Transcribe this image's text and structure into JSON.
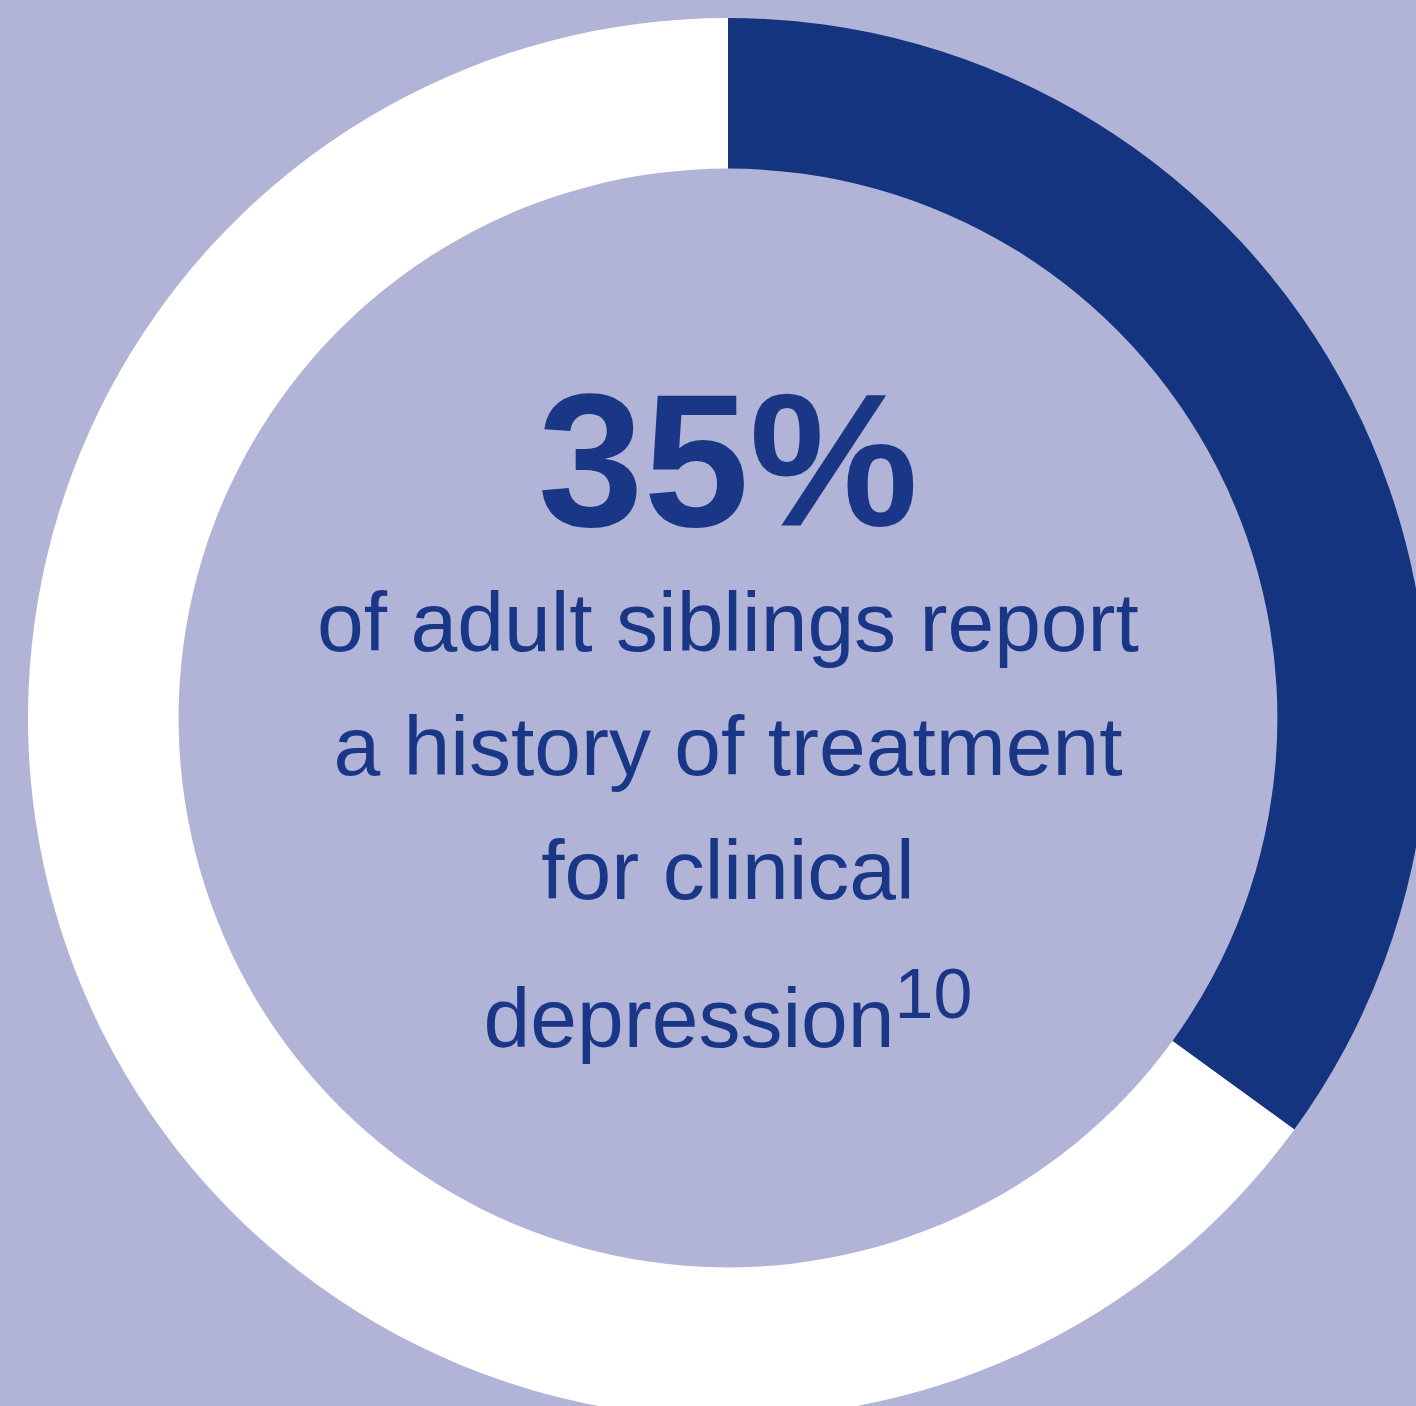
{
  "chart_data": {
    "type": "donut",
    "title": "35%",
    "annotations": [
      "of adult siblings report a history of treatment for clinical depression$^{10}$"
    ],
    "categories": [
      null,
      null
    ],
    "values": [
      35,
      65
    ],
    "colors": [
      "#15347f",
      "#ffffff"
    ],
    "legend": false
  }
}
